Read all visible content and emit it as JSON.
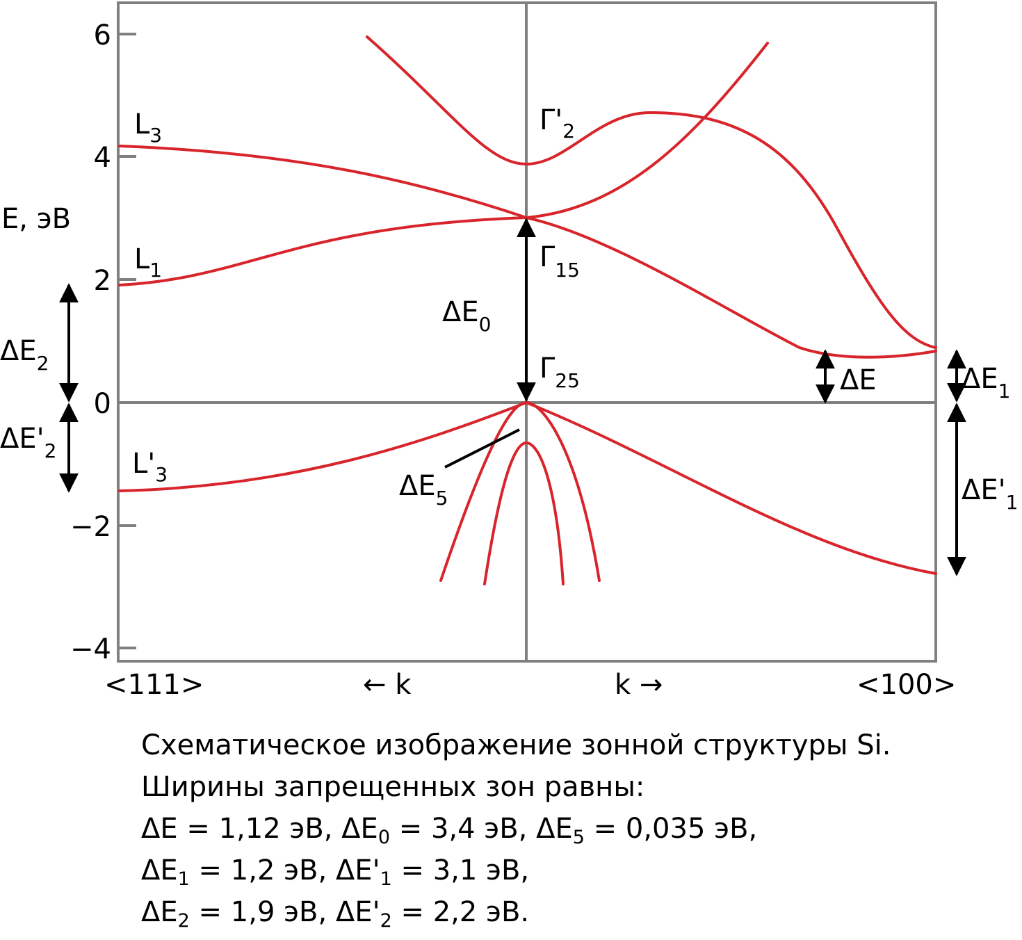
{
  "axis": {
    "ylabel": "E, эВ",
    "yticks": [
      "6",
      "4",
      "2",
      "0",
      "−2",
      "−4"
    ],
    "x_left": "<111>",
    "x_right": "<100>",
    "k_left": "← k",
    "k_right": "k →"
  },
  "symmetry_points": {
    "L3": {
      "main": "L",
      "sub": "3"
    },
    "L1": {
      "main": "L",
      "sub": "1"
    },
    "Lp3": {
      "main": "L'",
      "sub": "3"
    },
    "G2p": {
      "main": "Γ'",
      "sub": "2"
    },
    "G15": {
      "main": "Γ",
      "sub": "15"
    },
    "G25": {
      "main": "Γ",
      "sub": "25"
    }
  },
  "gaps": {
    "dE": {
      "main": "ΔE",
      "sub": ""
    },
    "dE0": {
      "main": "ΔE",
      "sub": "0"
    },
    "dE5": {
      "main": "ΔE",
      "sub": "5"
    },
    "dE1": {
      "main": "ΔE",
      "sub": "1"
    },
    "dEp1": {
      "main": "ΔE'",
      "sub": "1"
    },
    "dE2": {
      "main": "ΔE",
      "sub": "2"
    },
    "dEp2": {
      "main": "ΔE'",
      "sub": "2"
    }
  },
  "caption": {
    "line1": "Схематическое изображение зонной структуры Si.",
    "line2": "Ширины запрещенных зон равны:",
    "line3": [
      {
        "main": "ΔE = 1,12 эВ, ΔE",
        "sub": "0"
      },
      {
        "main": " = 3,4 эВ, ΔE",
        "sub": "5"
      },
      {
        "main": " = 0,035 эВ,",
        "sub": ""
      }
    ],
    "line4": [
      {
        "main": "ΔE",
        "sub": "1"
      },
      {
        "main": " = 1,2 эВ,  ΔE'",
        "sub": "1"
      },
      {
        "main": " = 3,1 эВ,",
        "sub": ""
      }
    ],
    "line5": [
      {
        "main": "ΔE",
        "sub": "2"
      },
      {
        "main": " = 1,9 эВ,  ΔE'",
        "sub": "2"
      },
      {
        "main": " = 2,2 эВ.",
        "sub": ""
      }
    ]
  },
  "colors": {
    "band": "#d8242b",
    "axis": "#808080",
    "arrow": "#000000"
  }
}
